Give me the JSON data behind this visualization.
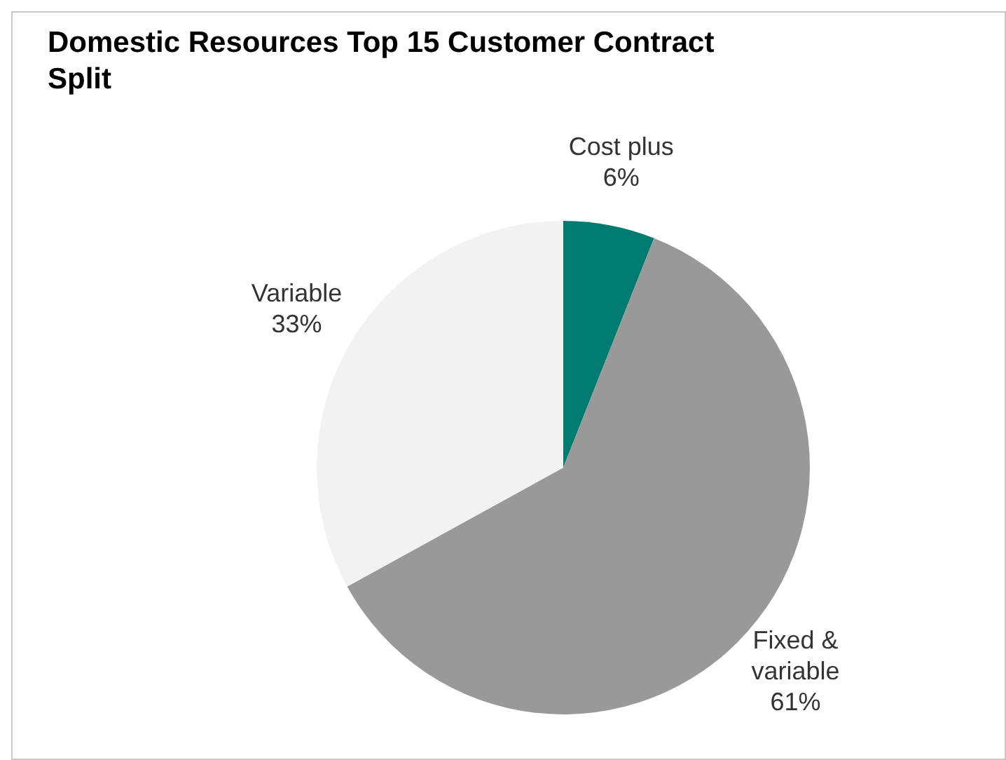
{
  "chart_data": {
    "type": "pie",
    "title": "Domestic Resources Top 15 Customer Contract Split",
    "categories": [
      "Cost plus",
      "Fixed & variable",
      "Variable"
    ],
    "values": [
      6,
      61,
      33
    ],
    "value_labels": [
      "6%",
      "61%",
      "33%"
    ],
    "colors": [
      "#007b70",
      "#999999",
      "#f2f2f2"
    ],
    "legend": false
  }
}
